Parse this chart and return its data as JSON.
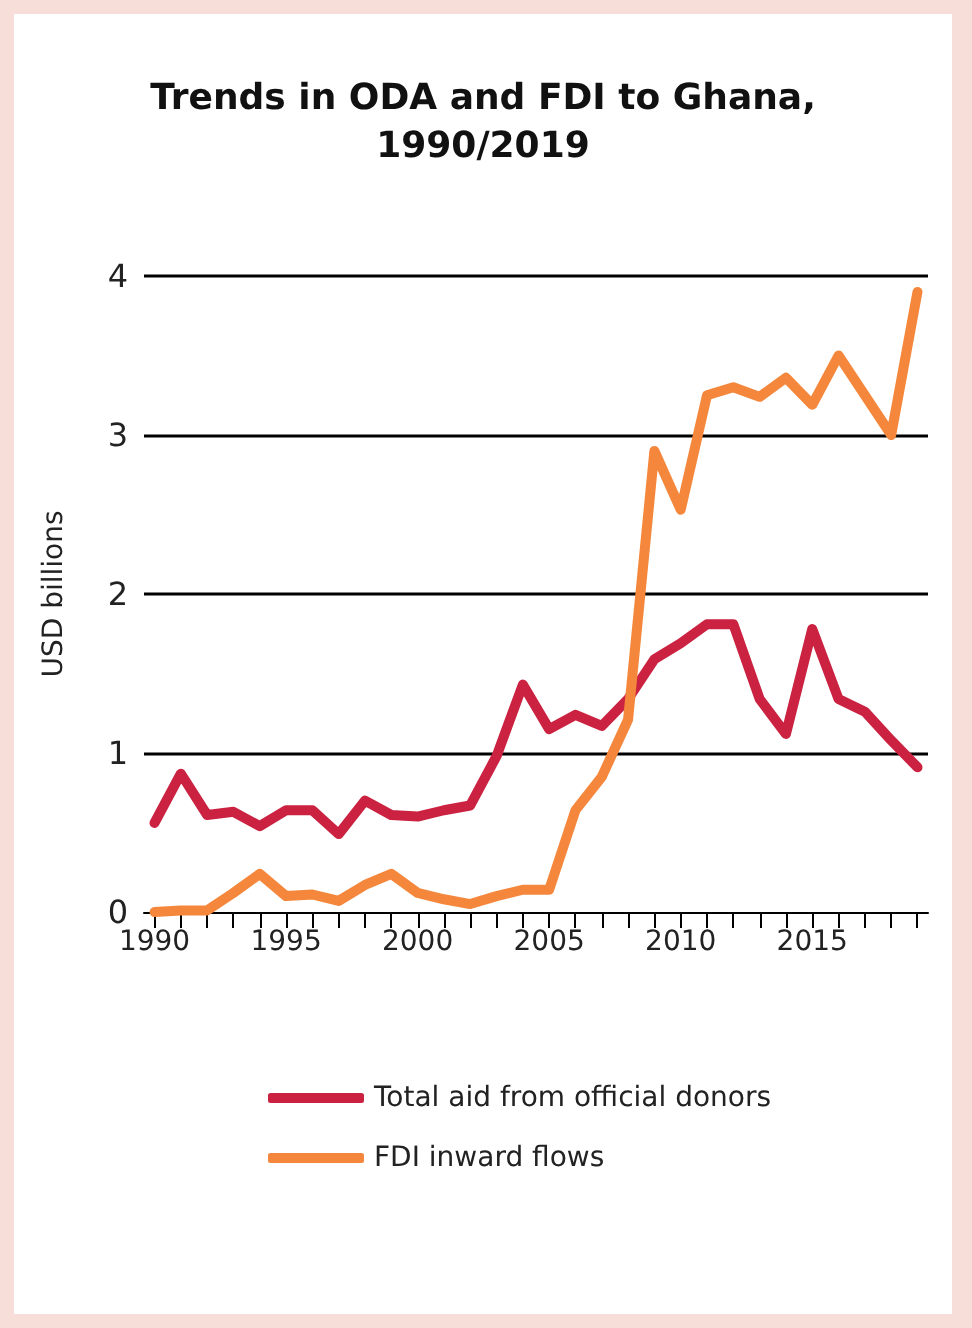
{
  "chart_data": {
    "type": "line",
    "title": "Trends in ODA and FDI to Ghana,\n1990/2019",
    "ylabel": "USD billions",
    "x": [
      1990,
      1991,
      1992,
      1993,
      1994,
      1995,
      1996,
      1997,
      1998,
      1999,
      2000,
      2001,
      2002,
      2003,
      2004,
      2005,
      2006,
      2007,
      2008,
      2009,
      2010,
      2011,
      2012,
      2013,
      2014,
      2015,
      2016,
      2017,
      2018,
      2019
    ],
    "series": [
      {
        "name": "Total aid from official donors",
        "color": "#cb2241",
        "values": [
          0.56,
          0.87,
          0.61,
          0.63,
          0.54,
          0.64,
          0.64,
          0.49,
          0.7,
          0.61,
          0.6,
          0.64,
          0.67,
          0.98,
          1.43,
          1.15,
          1.24,
          1.17,
          1.34,
          1.59,
          1.69,
          1.81,
          1.81,
          1.34,
          1.12,
          1.78,
          1.34,
          1.26,
          1.08,
          0.91
        ]
      },
      {
        "name": "FDI inward flows",
        "color": "#f5873c",
        "values": [
          0,
          0.01,
          0.01,
          0.12,
          0.24,
          0.1,
          0.11,
          0.07,
          0.17,
          0.24,
          0.12,
          0.08,
          0.05,
          0.1,
          0.14,
          0.14,
          0.64,
          0.85,
          1.21,
          2.9,
          2.53,
          3.25,
          3.3,
          3.24,
          3.36,
          3.19,
          3.5,
          3.25,
          3,
          3.9
        ]
      }
    ],
    "xlim": [
      1989.6,
      2019.4
    ],
    "xticks": [
      1990,
      {
        "value": 1991,
        "label": null
      },
      {
        "value": 1992,
        "label": null
      },
      {
        "value": 1993,
        "label": null
      },
      {
        "value": 1994,
        "label": null
      },
      1995,
      {
        "value": 1996,
        "label": null
      },
      {
        "value": 1997,
        "label": null
      },
      {
        "value": 1998,
        "label": null
      },
      {
        "value": 1999,
        "label": null
      },
      2000,
      {
        "value": 2001,
        "label": null
      },
      {
        "value": 2002,
        "label": null
      },
      {
        "value": 2003,
        "label": null
      },
      {
        "value": 2004,
        "label": null
      },
      2005,
      {
        "value": 2006,
        "label": null
      },
      {
        "value": 2007,
        "label": null
      },
      {
        "value": 2008,
        "label": null
      },
      {
        "value": 2009,
        "label": null
      },
      2010,
      {
        "value": 2011,
        "label": null
      },
      {
        "value": 2012,
        "label": null
      },
      {
        "value": 2013,
        "label": null
      },
      {
        "value": 2014,
        "label": null
      },
      2015,
      {
        "value": 2016,
        "label": null
      },
      {
        "value": 2017,
        "label": null
      },
      {
        "value": 2018,
        "label": null
      },
      {
        "value": 2019,
        "label": null
      }
    ],
    "ylim": [
      0,
      4
    ],
    "yticks": [
      0,
      1,
      2,
      3,
      4
    ],
    "grid": "y",
    "legend": "bottom",
    "marker": "none",
    "line_style": "solid"
  }
}
